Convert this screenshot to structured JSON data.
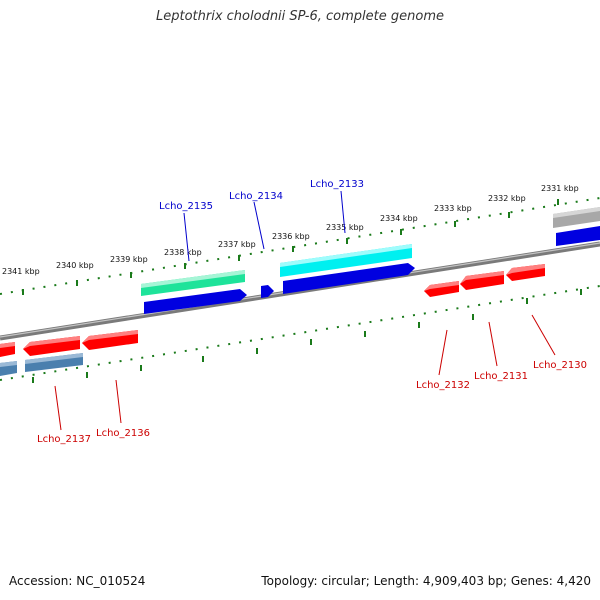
{
  "title": "Leptothrix cholodnii SP-6, complete genome",
  "footer": {
    "accession": "Accession: NC_010524",
    "summary": "Topology: circular; Length: 4,909,403 bp; Genes: 4,420"
  },
  "colors": {
    "backbone": "#808080",
    "tick": "#1a7a1a",
    "forward_label": "#0000cc",
    "reverse_label": "#cc0000"
  },
  "ticks": [
    {
      "label": "2331 kbp"
    },
    {
      "label": "2332 kbp"
    },
    {
      "label": "2333 kbp"
    },
    {
      "label": "2334 kbp"
    },
    {
      "label": "2335 kbp"
    },
    {
      "label": "2336 kbp"
    },
    {
      "label": "2337 kbp"
    },
    {
      "label": "2338 kbp"
    },
    {
      "label": "2339 kbp"
    },
    {
      "label": "2340 kbp"
    },
    {
      "label": "2341 kbp"
    }
  ],
  "genes_labeled": [
    {
      "name": "Lcho_2130",
      "strand": "reverse"
    },
    {
      "name": "Lcho_2131",
      "strand": "reverse"
    },
    {
      "name": "Lcho_2132",
      "strand": "reverse"
    },
    {
      "name": "Lcho_2133",
      "strand": "forward"
    },
    {
      "name": "Lcho_2134",
      "strand": "forward"
    },
    {
      "name": "Lcho_2135",
      "strand": "forward"
    },
    {
      "name": "Lcho_2136",
      "strand": "reverse"
    },
    {
      "name": "Lcho_2137",
      "strand": "reverse"
    }
  ],
  "feature_colors": {
    "cds_forward": "#0000e0",
    "cds_reverse": "#ff0000",
    "cog_green": "#22dd99",
    "cog_cyan": "#00ffff",
    "cog_steel": "#4a7fae",
    "cog_gray": "#a0a0a0"
  }
}
